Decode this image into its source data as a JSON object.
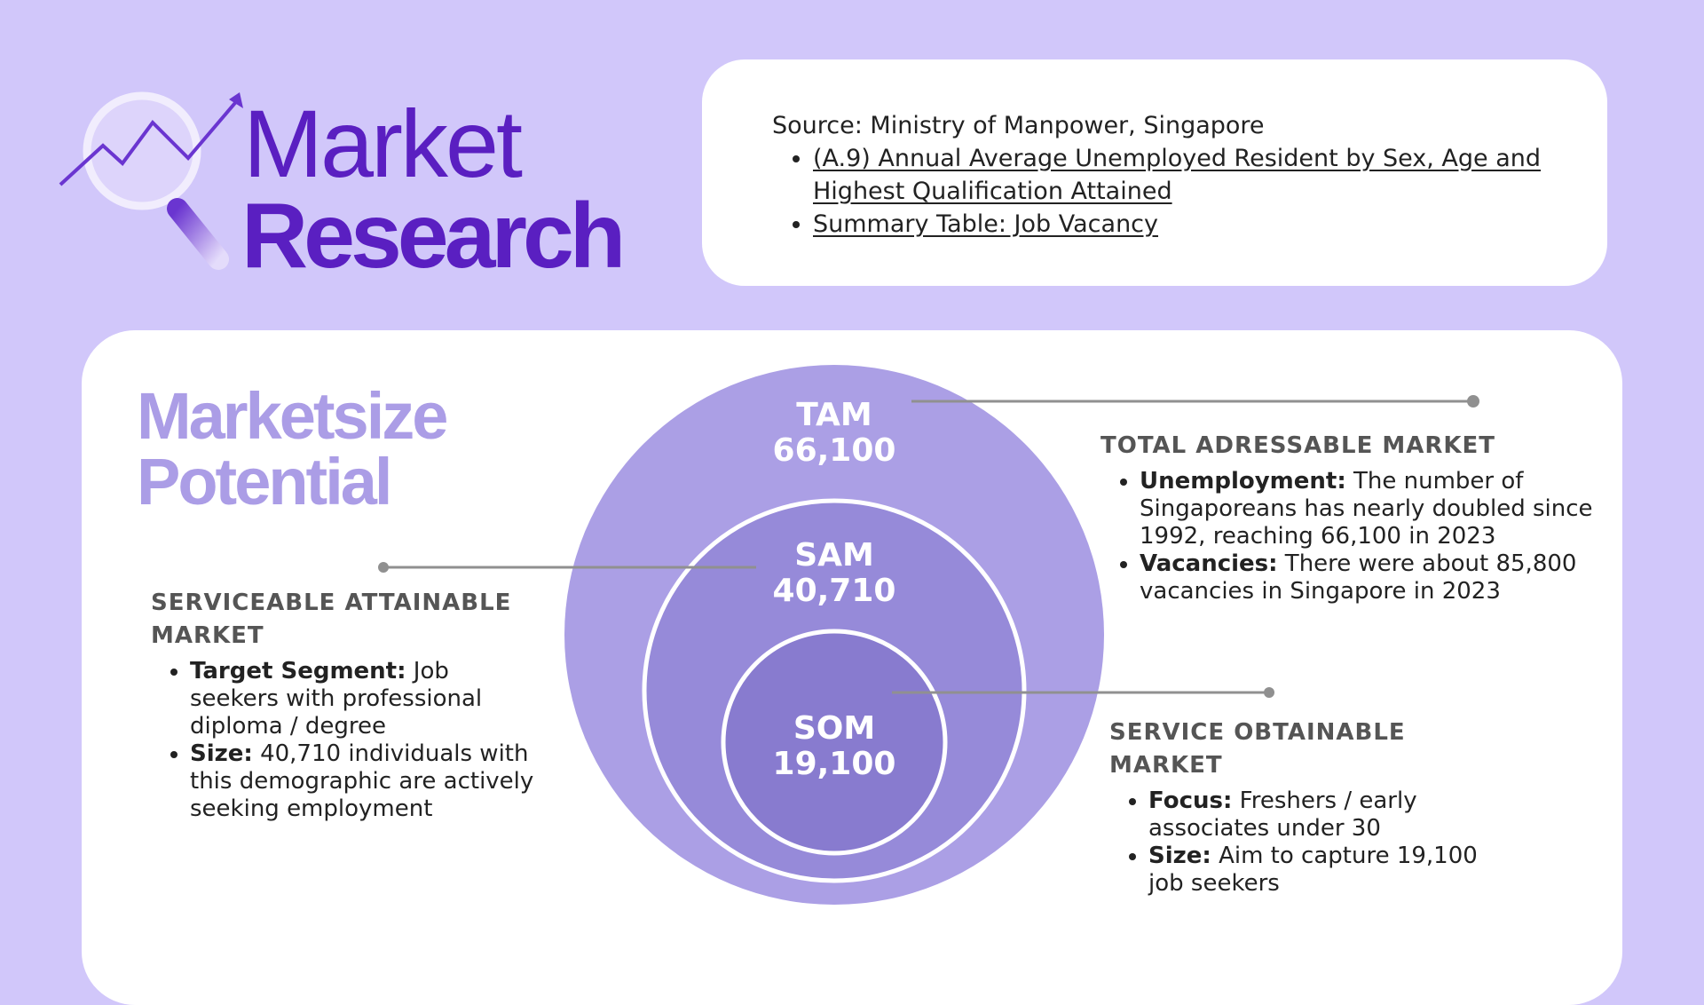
{
  "header": {
    "title_line1": "Market",
    "title_line2": "Research",
    "logo_icon": "magnifier-chart-icon"
  },
  "source": {
    "heading": "Source: Ministry of Manpower, Singapore",
    "links": [
      "(A.9) Annual Average Unemployed Resident by Sex, Age and Highest Qualification Attained",
      "Summary Table: Job Vacancy"
    ]
  },
  "section": {
    "title_line1": "Marketsize",
    "title_line2": "Potential"
  },
  "circles": {
    "tam": {
      "label": "TAM",
      "value": "66,100"
    },
    "sam": {
      "label": "SAM",
      "value": "40,710"
    },
    "som": {
      "label": "SOM",
      "value": "19,100"
    }
  },
  "tam_info": {
    "heading": "TOTAL ADRESSABLE MARKET",
    "items": [
      {
        "term": "Unemployment:",
        "text": " The number of Singaporeans has nearly doubled since 1992, reaching 66,100 in 2023"
      },
      {
        "term": "Vacancies:",
        "text": " There were about 85,800 vacancies in Singapore in 2023"
      }
    ]
  },
  "sam_info": {
    "heading": "SERVICEABLE ATTAINABLE MARKET",
    "items": [
      {
        "term": "Target Segment:",
        "text": " Job seekers with professional diploma / degree"
      },
      {
        "term": "Size:",
        "text": " 40,710 individuals with this demographic are actively seeking employment"
      }
    ]
  },
  "som_info": {
    "heading": "SERVICE OBTAINABLE MARKET",
    "items": [
      {
        "term": "Focus:",
        "text": " Freshers / early associates under 30"
      },
      {
        "term": "Size:",
        "text": " Aim to capture 19,100 job seekers"
      }
    ]
  },
  "colors": {
    "background": "#d1c7fa",
    "title": "#5a1fc1",
    "section_title": "#ab9de6",
    "tam": "#ab9fe5",
    "sam": "#968ad9",
    "som": "#887bcf"
  }
}
